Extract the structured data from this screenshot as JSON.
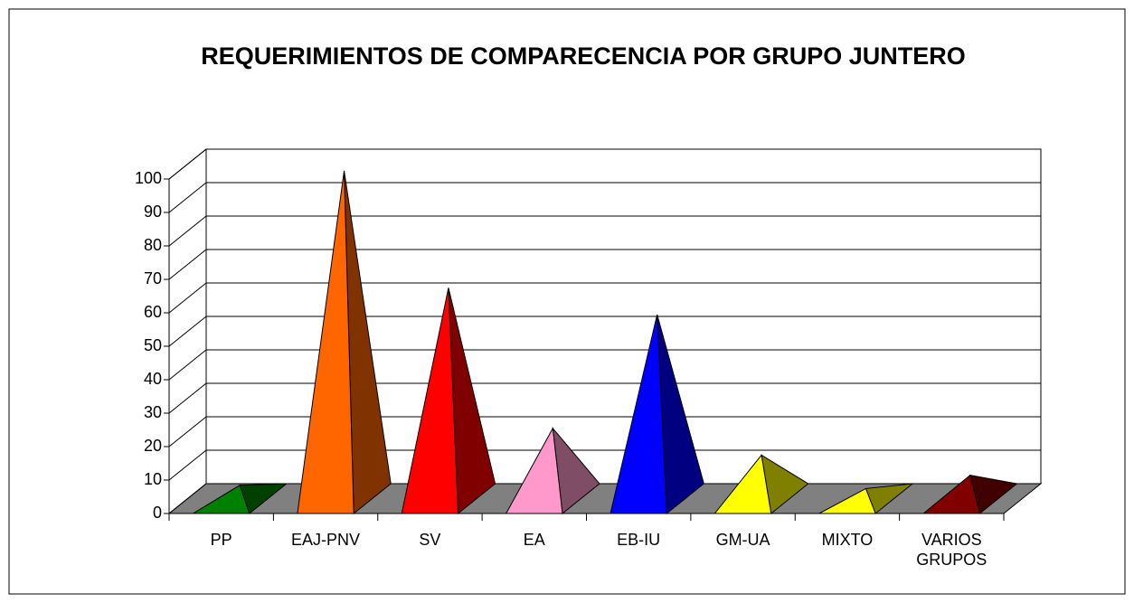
{
  "chart_data": {
    "type": "pyramid3d",
    "title": "REQUERIMIENTOS DE COMPARECENCIA POR GRUPO JUNTERO",
    "categories": [
      "PP",
      "EAJ-PNV",
      "SV",
      "EA",
      "EB-IU",
      "GM-UA",
      "MIXTO",
      "VARIOS GRUPOS"
    ],
    "values": [
      4,
      98,
      63,
      21,
      55,
      13,
      3,
      7
    ],
    "colors": [
      "#008000",
      "#ff6600",
      "#ff0000",
      "#ff99cc",
      "#0000ff",
      "#ffff00",
      "#ffff00",
      "#800000"
    ],
    "ylim": [
      0,
      100
    ],
    "yticks": [
      0,
      10,
      20,
      30,
      40,
      50,
      60,
      70,
      80,
      90,
      100
    ],
    "grid": true
  }
}
